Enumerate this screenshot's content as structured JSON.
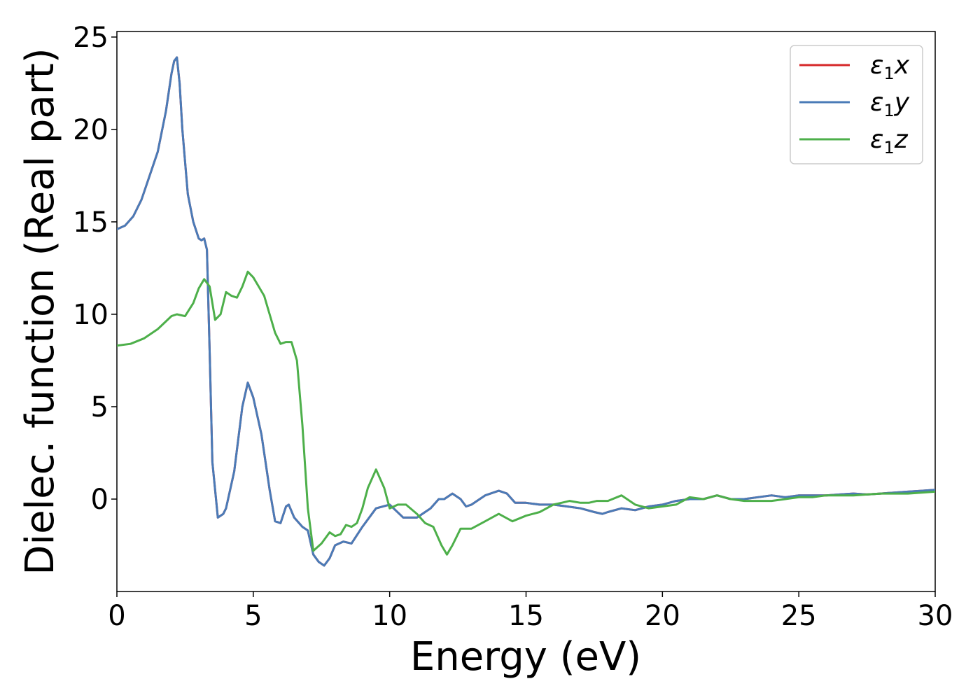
{
  "chart_data": {
    "type": "line",
    "title": "",
    "xlabel": "Energy (eV)",
    "ylabel": "Dielec. function (Real part)",
    "xlim": [
      0,
      30
    ],
    "ylim": [
      -5,
      25.3
    ],
    "xticks": [
      0,
      5,
      10,
      15,
      20,
      25,
      30
    ],
    "yticks": [
      0,
      5,
      10,
      15,
      20,
      25
    ],
    "grid": false,
    "legend_position": "top-right",
    "series": [
      {
        "name": "ε₁x",
        "color": "#d62728",
        "x": [
          0,
          0.3,
          0.6,
          0.9,
          1.2,
          1.5,
          1.8,
          2.0,
          2.1,
          2.2,
          2.3,
          2.4,
          2.6,
          2.8,
          3.0,
          3.1,
          3.2,
          3.3,
          3.4,
          3.5,
          3.7,
          3.9,
          4.0,
          4.3,
          4.6,
          4.8,
          5.0,
          5.3,
          5.6,
          5.8,
          6.0,
          6.2,
          6.3,
          6.5,
          6.8,
          7.0,
          7.2,
          7.4,
          7.6,
          7.8,
          8.0,
          8.3,
          8.6,
          9.0,
          9.5,
          10.0,
          10.5,
          11.0,
          11.5,
          11.8,
          12.0,
          12.3,
          12.6,
          12.8,
          13.0,
          13.5,
          14.0,
          14.3,
          14.6,
          15.0,
          15.5,
          16.0,
          16.5,
          17.0,
          17.5,
          17.8,
          18.0,
          18.5,
          19.0,
          19.5,
          20.0,
          20.5,
          21.0,
          21.5,
          22.0,
          22.5,
          23.0,
          23.5,
          24.0,
          24.5,
          25.0,
          25.5,
          26.0,
          26.5,
          27.0,
          27.5,
          28.0,
          28.5,
          29.0,
          29.5,
          30.0
        ],
        "y": [
          14.6,
          14.8,
          15.3,
          16.2,
          17.5,
          18.8,
          21.0,
          23.0,
          23.7,
          23.9,
          22.5,
          20.0,
          16.5,
          15.0,
          14.1,
          14.0,
          14.1,
          13.5,
          8.0,
          2.0,
          -1.0,
          -0.8,
          -0.5,
          1.5,
          5.0,
          6.3,
          5.5,
          3.5,
          0.5,
          -1.2,
          -1.3,
          -0.4,
          -0.3,
          -1.0,
          -1.5,
          -1.7,
          -3.0,
          -3.4,
          -3.6,
          -3.2,
          -2.5,
          -2.3,
          -2.4,
          -1.5,
          -0.5,
          -0.3,
          -1.0,
          -1.0,
          -0.5,
          0.0,
          0.0,
          0.3,
          0.0,
          -0.4,
          -0.3,
          0.2,
          0.45,
          0.3,
          -0.2,
          -0.2,
          -0.3,
          -0.3,
          -0.4,
          -0.5,
          -0.7,
          -0.8,
          -0.7,
          -0.5,
          -0.6,
          -0.4,
          -0.3,
          -0.1,
          0.0,
          0.0,
          0.2,
          0.0,
          0.0,
          0.1,
          0.2,
          0.1,
          0.2,
          0.2,
          0.2,
          0.25,
          0.3,
          0.25,
          0.3,
          0.35,
          0.4,
          0.45,
          0.5
        ]
      },
      {
        "name": "ε₁y",
        "color": "#4a7bb7",
        "x": [
          0,
          0.3,
          0.6,
          0.9,
          1.2,
          1.5,
          1.8,
          2.0,
          2.1,
          2.2,
          2.3,
          2.4,
          2.6,
          2.8,
          3.0,
          3.1,
          3.2,
          3.3,
          3.4,
          3.5,
          3.7,
          3.9,
          4.0,
          4.3,
          4.6,
          4.8,
          5.0,
          5.3,
          5.6,
          5.8,
          6.0,
          6.2,
          6.3,
          6.5,
          6.8,
          7.0,
          7.2,
          7.4,
          7.6,
          7.8,
          8.0,
          8.3,
          8.6,
          9.0,
          9.5,
          10.0,
          10.5,
          11.0,
          11.5,
          11.8,
          12.0,
          12.3,
          12.6,
          12.8,
          13.0,
          13.5,
          14.0,
          14.3,
          14.6,
          15.0,
          15.5,
          16.0,
          16.5,
          17.0,
          17.5,
          17.8,
          18.0,
          18.5,
          19.0,
          19.5,
          20.0,
          20.5,
          21.0,
          21.5,
          22.0,
          22.5,
          23.0,
          23.5,
          24.0,
          24.5,
          25.0,
          25.5,
          26.0,
          26.5,
          27.0,
          27.5,
          28.0,
          28.5,
          29.0,
          29.5,
          30.0
        ],
        "y": [
          14.6,
          14.8,
          15.3,
          16.2,
          17.5,
          18.8,
          21.0,
          23.0,
          23.7,
          23.9,
          22.5,
          20.0,
          16.5,
          15.0,
          14.1,
          14.0,
          14.1,
          13.5,
          8.0,
          2.0,
          -1.0,
          -0.8,
          -0.5,
          1.5,
          5.0,
          6.3,
          5.5,
          3.5,
          0.5,
          -1.2,
          -1.3,
          -0.4,
          -0.3,
          -1.0,
          -1.5,
          -1.7,
          -3.0,
          -3.4,
          -3.6,
          -3.2,
          -2.5,
          -2.3,
          -2.4,
          -1.5,
          -0.5,
          -0.3,
          -1.0,
          -1.0,
          -0.5,
          0.0,
          0.0,
          0.3,
          0.0,
          -0.4,
          -0.3,
          0.2,
          0.45,
          0.3,
          -0.2,
          -0.2,
          -0.3,
          -0.3,
          -0.4,
          -0.5,
          -0.7,
          -0.8,
          -0.7,
          -0.5,
          -0.6,
          -0.4,
          -0.3,
          -0.1,
          0.0,
          0.0,
          0.2,
          0.0,
          0.0,
          0.1,
          0.2,
          0.1,
          0.2,
          0.2,
          0.2,
          0.25,
          0.3,
          0.25,
          0.3,
          0.35,
          0.4,
          0.45,
          0.5
        ]
      },
      {
        "name": "ε₁z",
        "color": "#4daf4a",
        "x": [
          0,
          0.5,
          1.0,
          1.5,
          2.0,
          2.2,
          2.5,
          2.8,
          3.0,
          3.2,
          3.4,
          3.6,
          3.8,
          4.0,
          4.2,
          4.4,
          4.6,
          4.8,
          5.0,
          5.2,
          5.4,
          5.6,
          5.8,
          6.0,
          6.2,
          6.4,
          6.6,
          6.8,
          7.0,
          7.2,
          7.5,
          7.8,
          8.0,
          8.2,
          8.4,
          8.6,
          8.8,
          9.0,
          9.2,
          9.5,
          9.8,
          10.0,
          10.3,
          10.6,
          11.0,
          11.3,
          11.6,
          11.9,
          12.1,
          12.3,
          12.6,
          13.0,
          13.5,
          14.0,
          14.5,
          15.0,
          15.5,
          16.0,
          16.3,
          16.6,
          17.0,
          17.3,
          17.6,
          18.0,
          18.5,
          19.0,
          19.5,
          20.0,
          20.5,
          21.0,
          21.5,
          22.0,
          22.5,
          23.0,
          23.5,
          24.0,
          24.5,
          25.0,
          25.5,
          26.0,
          26.5,
          27.0,
          27.5,
          28.0,
          28.5,
          29.0,
          29.5,
          30.0
        ],
        "y": [
          8.3,
          8.4,
          8.7,
          9.2,
          9.9,
          10.0,
          9.9,
          10.6,
          11.4,
          11.9,
          11.5,
          9.7,
          10.0,
          11.2,
          11.0,
          10.9,
          11.5,
          12.3,
          12.0,
          11.5,
          11.0,
          10.0,
          9.0,
          8.4,
          8.5,
          8.5,
          7.5,
          4.0,
          -0.5,
          -2.8,
          -2.4,
          -1.8,
          -2.0,
          -1.9,
          -1.4,
          -1.5,
          -1.3,
          -0.5,
          0.6,
          1.6,
          0.6,
          -0.5,
          -0.3,
          -0.3,
          -0.8,
          -1.3,
          -1.5,
          -2.5,
          -3.0,
          -2.5,
          -1.6,
          -1.6,
          -1.2,
          -0.8,
          -1.2,
          -0.9,
          -0.7,
          -0.3,
          -0.2,
          -0.1,
          -0.2,
          -0.2,
          -0.1,
          -0.1,
          0.2,
          -0.3,
          -0.5,
          -0.4,
          -0.3,
          0.1,
          0.0,
          0.2,
          0.0,
          -0.1,
          -0.1,
          -0.1,
          0.0,
          0.1,
          0.1,
          0.2,
          0.2,
          0.2,
          0.25,
          0.3,
          0.3,
          0.3,
          0.35,
          0.4
        ]
      }
    ]
  },
  "legend": {
    "items": [
      {
        "base": "ε",
        "sub": "1",
        "axis": "x",
        "color": "#d62728"
      },
      {
        "base": "ε",
        "sub": "1",
        "axis": "y",
        "color": "#4a7bb7"
      },
      {
        "base": "ε",
        "sub": "1",
        "axis": "z",
        "color": "#4daf4a"
      }
    ]
  }
}
